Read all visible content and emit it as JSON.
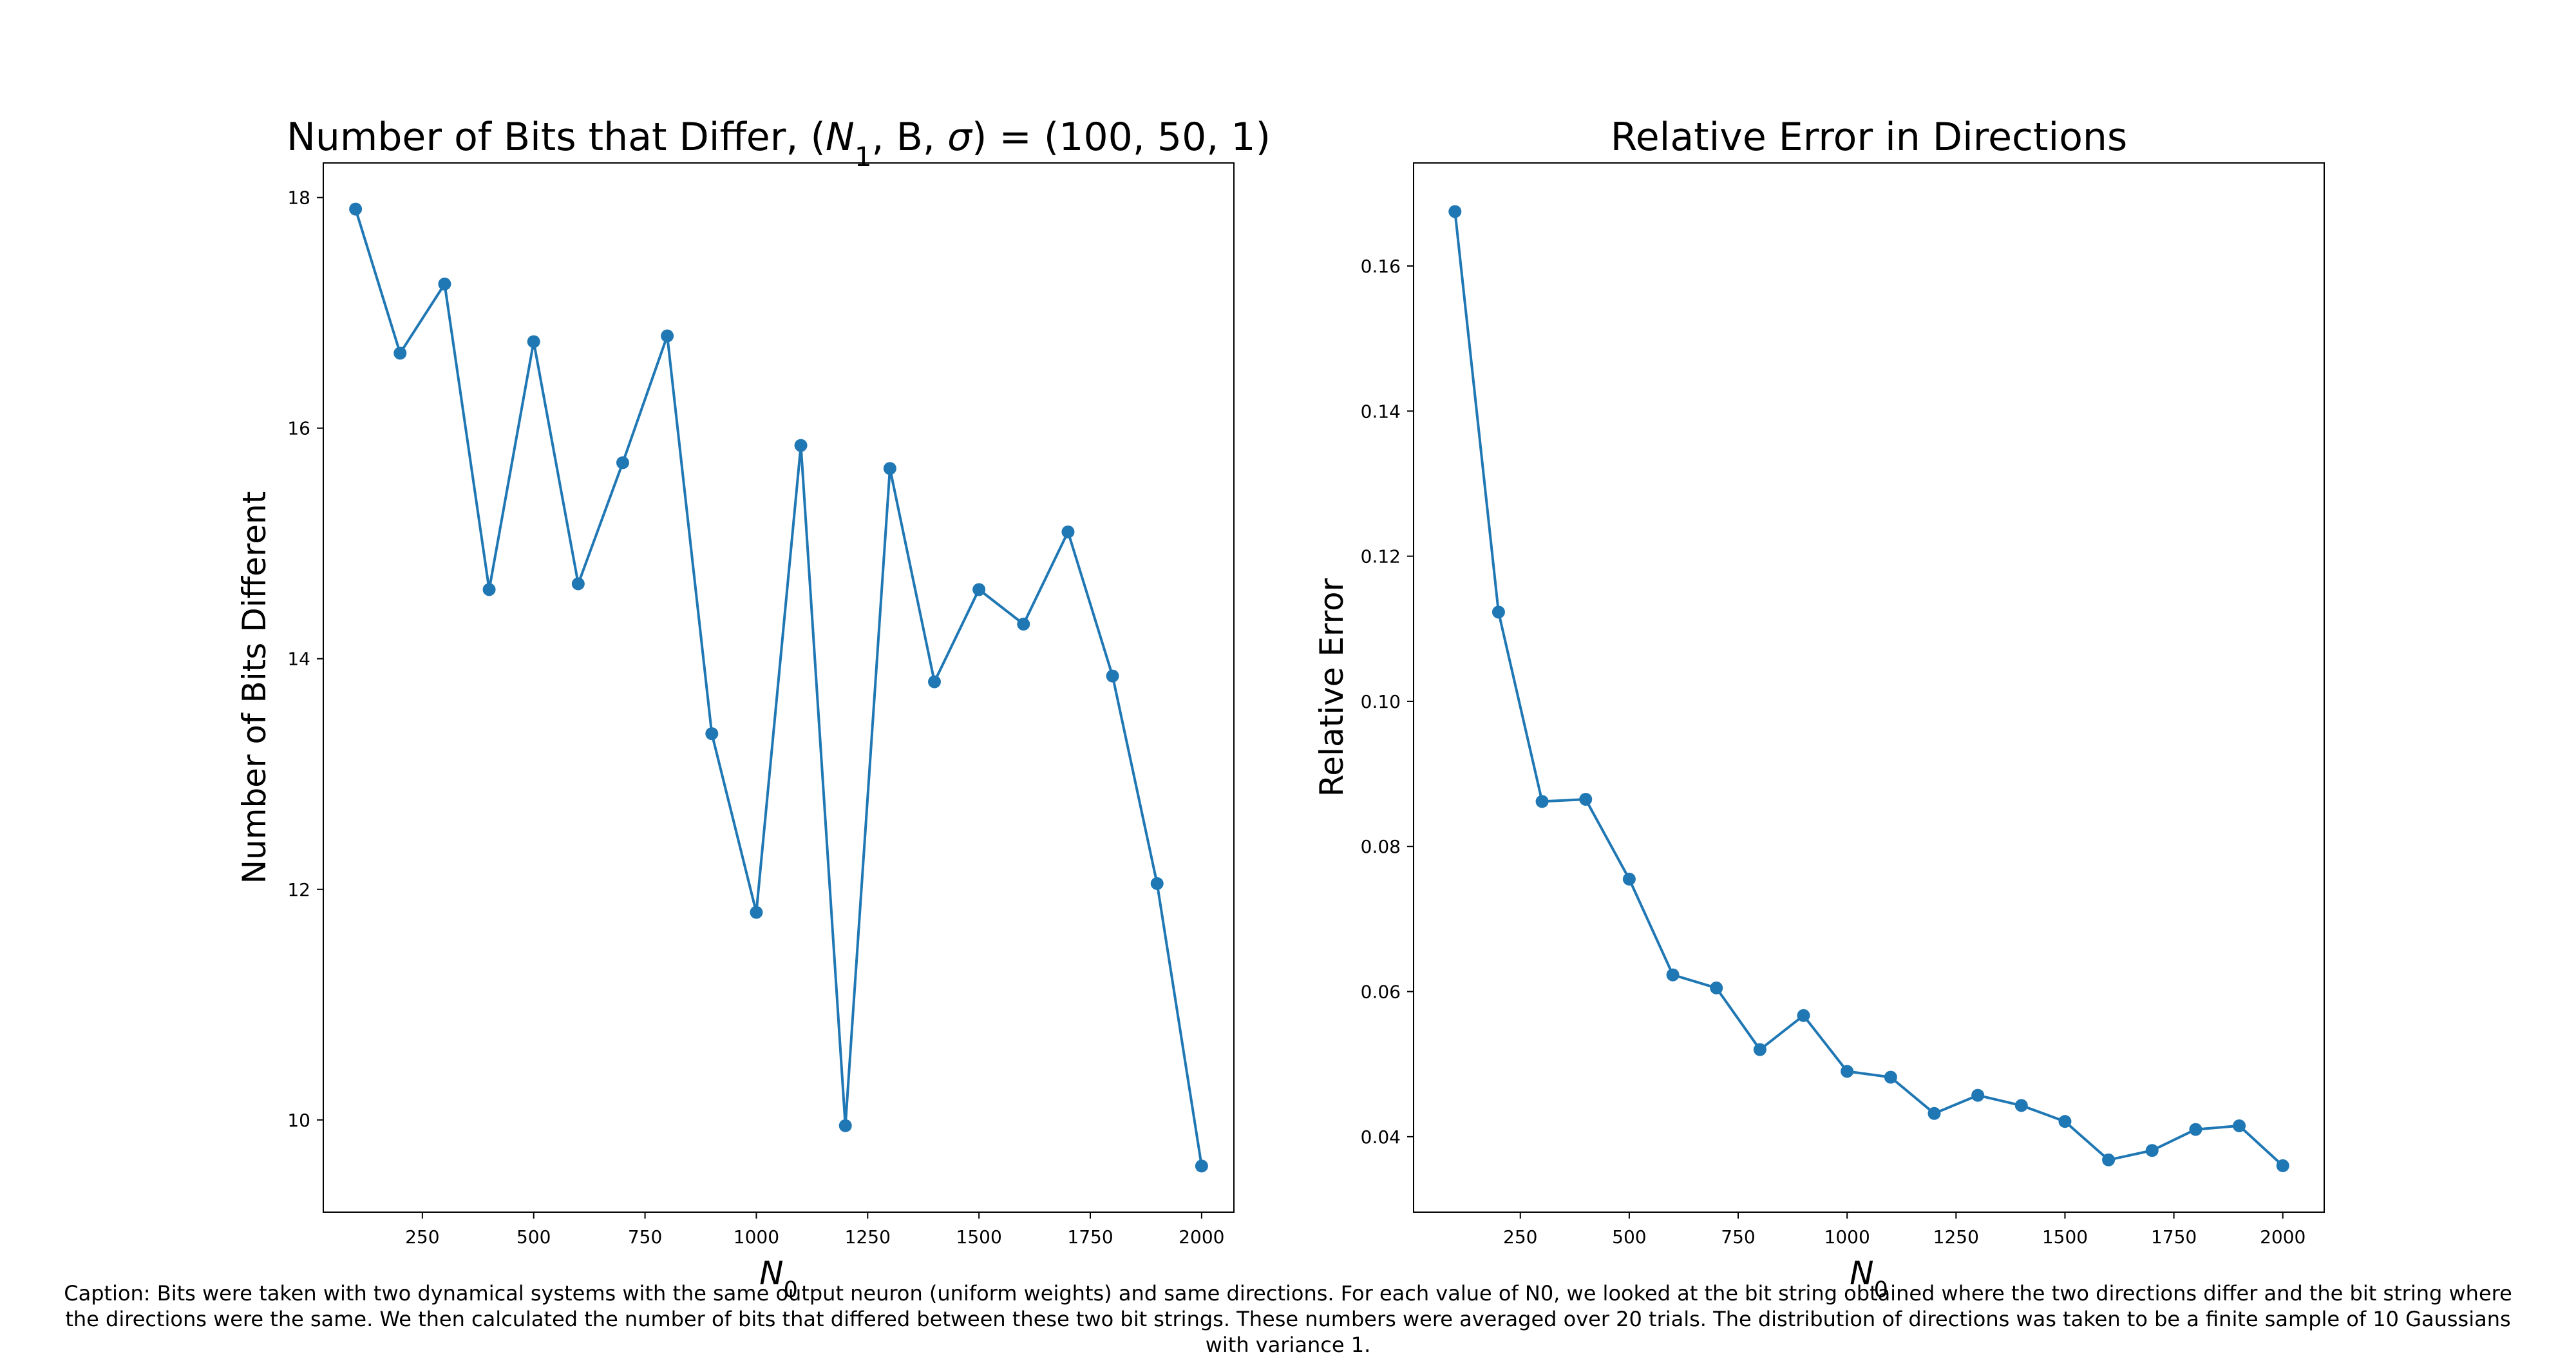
{
  "chart_data": [
    {
      "type": "line",
      "title": "Number of Bits that Differ, (N₁, B, σ) = (100, 50, 1)",
      "xlabel": "N₀",
      "ylabel": "Number of Bits Different",
      "xlim": [
        27.5,
        2072.5
      ],
      "ylim": [
        9.2,
        18.3
      ],
      "xticks": [
        250,
        500,
        750,
        1000,
        1250,
        1500,
        1750,
        2000
      ],
      "xtick_labels": [
        "250",
        "500",
        "750",
        "1000",
        "1250",
        "1500",
        "1750",
        "2000"
      ],
      "yticks": [
        10,
        12,
        14,
        16,
        18
      ],
      "ytick_labels": [
        "10",
        "12",
        "14",
        "16",
        "18"
      ],
      "grid": false,
      "color": "#1f77b4",
      "x": [
        100,
        200,
        300,
        400,
        500,
        600,
        700,
        800,
        900,
        1000,
        1100,
        1200,
        1300,
        1400,
        1500,
        1600,
        1700,
        1800,
        1900,
        2000
      ],
      "y": [
        17.9,
        16.65,
        17.25,
        14.6,
        16.75,
        14.65,
        15.7,
        16.8,
        13.35,
        11.8,
        15.85,
        9.95,
        15.65,
        13.8,
        14.6,
        14.3,
        15.1,
        13.85,
        12.05,
        9.6
      ]
    },
    {
      "type": "line",
      "title": "Relative Error in Directions",
      "xlabel": "N₀",
      "ylabel": "Relative Error",
      "xlim": [
        5,
        2095
      ],
      "ylim": [
        0.0296,
        0.1742
      ],
      "xticks": [
        250,
        500,
        750,
        1000,
        1250,
        1500,
        1750,
        2000
      ],
      "xtick_labels": [
        "250",
        "500",
        "750",
        "1000",
        "1250",
        "1500",
        "1750",
        "2000"
      ],
      "yticks": [
        0.04,
        0.06,
        0.08,
        0.1,
        0.12,
        0.14,
        0.16
      ],
      "ytick_labels": [
        "0.04",
        "0.06",
        "0.08",
        "0.10",
        "0.12",
        "0.14",
        "0.16"
      ],
      "grid": false,
      "color": "#1f77b4",
      "x": [
        100,
        200,
        300,
        400,
        500,
        600,
        700,
        800,
        900,
        1000,
        1100,
        1200,
        1300,
        1400,
        1500,
        1600,
        1700,
        1800,
        1900,
        2000
      ],
      "y": [
        0.1675,
        0.1123,
        0.0862,
        0.0865,
        0.0755,
        0.0623,
        0.0605,
        0.052,
        0.0567,
        0.049,
        0.0482,
        0.0432,
        0.0457,
        0.0443,
        0.0421,
        0.0368,
        0.0381,
        0.041,
        0.0415,
        0.036
      ]
    }
  ],
  "caption": [
    "Caption: Bits were taken with two dynamical systems with the same output neuron (uniform weights) and same directions. For each value of N0, we looked at the bit string obtained where the two directions differ and the bit string where",
    "the directions were the same. We then calculated the number of bits that differed between these two bit strings. These numbers were averaged over 20 trials. The distribution of directions was taken to be a finite sample of 10 Gaussians",
    "with variance 1."
  ]
}
